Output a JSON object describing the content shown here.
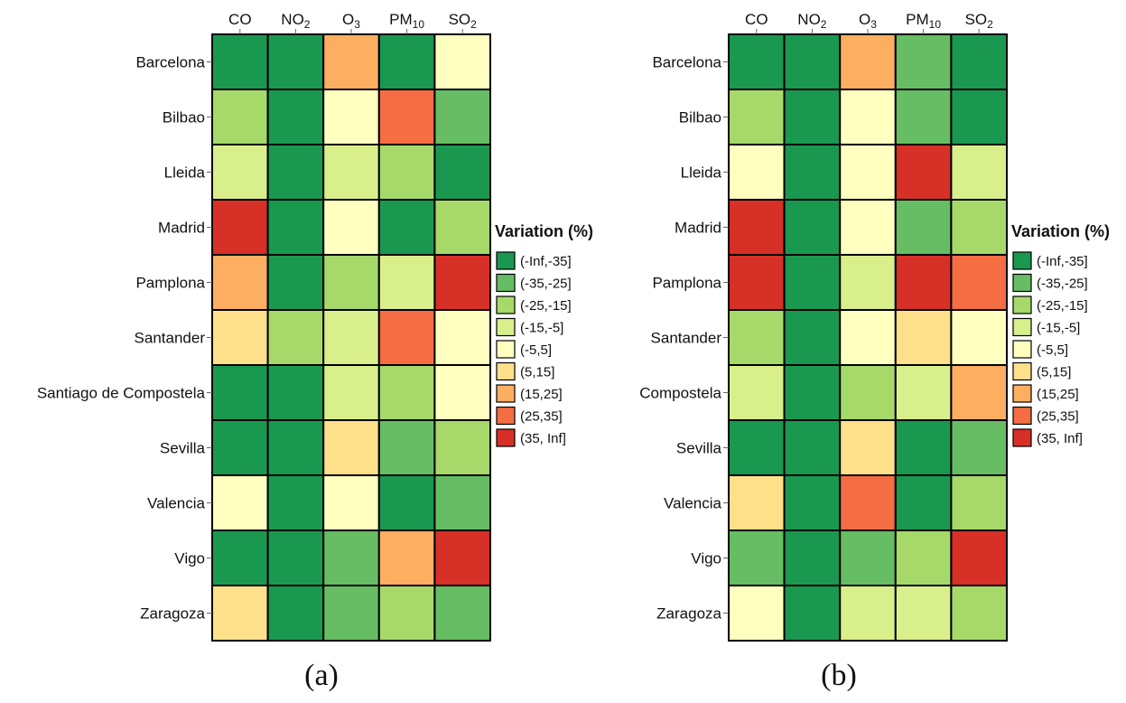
{
  "legend": {
    "title": "Variation (%)",
    "items": [
      {
        "label": "(-Inf,-35]",
        "color": "#1a9850"
      },
      {
        "label": "(-35,-25]",
        "color": "#66bd63"
      },
      {
        "label": "(-25,-15]",
        "color": "#a6d96a"
      },
      {
        "label": "(-15,-5]",
        "color": "#d9ef8b"
      },
      {
        "label": "(-5,5]",
        "color": "#ffffbf"
      },
      {
        "label": "(5,15]",
        "color": "#fee08b"
      },
      {
        "label": "(15,25]",
        "color": "#fdae61"
      },
      {
        "label": "(25,35]",
        "color": "#f46d43"
      },
      {
        "label": "(35, Inf]",
        "color": "#d73027"
      }
    ]
  },
  "chart_data": [
    {
      "type": "heatmap",
      "caption": "(a)",
      "columns": [
        {
          "base": "CO",
          "sub": ""
        },
        {
          "base": "NO",
          "sub": "2"
        },
        {
          "base": "O",
          "sub": "3"
        },
        {
          "base": "PM",
          "sub": "10"
        },
        {
          "base": "SO",
          "sub": "2"
        }
      ],
      "rows": [
        "Barcelona",
        "Bilbao",
        "Lleida",
        "Madrid",
        "Pamplona",
        "Santander",
        "Santiago de Compostela",
        "Sevilla",
        "Valencia",
        "Vigo",
        "Zaragoza"
      ],
      "values": [
        [
          "(-Inf,-35]",
          "(-Inf,-35]",
          "(15,25]",
          "(-Inf,-35]",
          "(-5,5]"
        ],
        [
          "(-25,-15]",
          "(-Inf,-35]",
          "(-5,5]",
          "(25,35]",
          "(-35,-25]"
        ],
        [
          "(-15,-5]",
          "(-Inf,-35]",
          "(-15,-5]",
          "(-25,-15]",
          "(-Inf,-35]"
        ],
        [
          "(35, Inf]",
          "(-Inf,-35]",
          "(-5,5]",
          "(-Inf,-35]",
          "(-25,-15]"
        ],
        [
          "(15,25]",
          "(-Inf,-35]",
          "(-25,-15]",
          "(-15,-5]",
          "(35, Inf]"
        ],
        [
          "(5,15]",
          "(-25,-15]",
          "(-15,-5]",
          "(25,35]",
          "(-5,5]"
        ],
        [
          "(-Inf,-35]",
          "(-Inf,-35]",
          "(-15,-5]",
          "(-25,-15]",
          "(-5,5]"
        ],
        [
          "(-Inf,-35]",
          "(-Inf,-35]",
          "(5,15]",
          "(-35,-25]",
          "(-25,-15]"
        ],
        [
          "(-5,5]",
          "(-Inf,-35]",
          "(-5,5]",
          "(-Inf,-35]",
          "(-35,-25]"
        ],
        [
          "(-Inf,-35]",
          "(-Inf,-35]",
          "(-35,-25]",
          "(15,25]",
          "(35, Inf]"
        ],
        [
          "(5,15]",
          "(-Inf,-35]",
          "(-35,-25]",
          "(-25,-15]",
          "(-35,-25]"
        ]
      ]
    },
    {
      "type": "heatmap",
      "caption": "(b)",
      "columns": [
        {
          "base": "CO",
          "sub": ""
        },
        {
          "base": "NO",
          "sub": "2"
        },
        {
          "base": "O",
          "sub": "3"
        },
        {
          "base": "PM",
          "sub": "10"
        },
        {
          "base": "SO",
          "sub": "2"
        }
      ],
      "rows": [
        "Barcelona",
        "Bilbao",
        "Lleida",
        "Madrid",
        "Pamplona",
        "Santander",
        "Compostela",
        "Sevilla",
        "Valencia",
        "Vigo",
        "Zaragoza"
      ],
      "values": [
        [
          "(-Inf,-35]",
          "(-Inf,-35]",
          "(15,25]",
          "(-35,-25]",
          "(-Inf,-35]"
        ],
        [
          "(-25,-15]",
          "(-Inf,-35]",
          "(-5,5]",
          "(-35,-25]",
          "(-Inf,-35]"
        ],
        [
          "(-5,5]",
          "(-Inf,-35]",
          "(-5,5]",
          "(35, Inf]",
          "(-15,-5]"
        ],
        [
          "(35, Inf]",
          "(-Inf,-35]",
          "(-5,5]",
          "(-35,-25]",
          "(-25,-15]"
        ],
        [
          "(35, Inf]",
          "(-Inf,-35]",
          "(-15,-5]",
          "(35, Inf]",
          "(25,35]"
        ],
        [
          "(-25,-15]",
          "(-Inf,-35]",
          "(-5,5]",
          "(5,15]",
          "(-5,5]"
        ],
        [
          "(-15,-5]",
          "(-Inf,-35]",
          "(-25,-15]",
          "(-15,-5]",
          "(15,25]"
        ],
        [
          "(-Inf,-35]",
          "(-Inf,-35]",
          "(5,15]",
          "(-Inf,-35]",
          "(-35,-25]"
        ],
        [
          "(5,15]",
          "(-Inf,-35]",
          "(25,35]",
          "(-Inf,-35]",
          "(-25,-15]"
        ],
        [
          "(-35,-25]",
          "(-Inf,-35]",
          "(-35,-25]",
          "(-25,-15]",
          "(35, Inf]"
        ],
        [
          "(-5,5]",
          "(-Inf,-35]",
          "(-15,-5]",
          "(-15,-5]",
          "(-25,-15]"
        ]
      ]
    }
  ]
}
